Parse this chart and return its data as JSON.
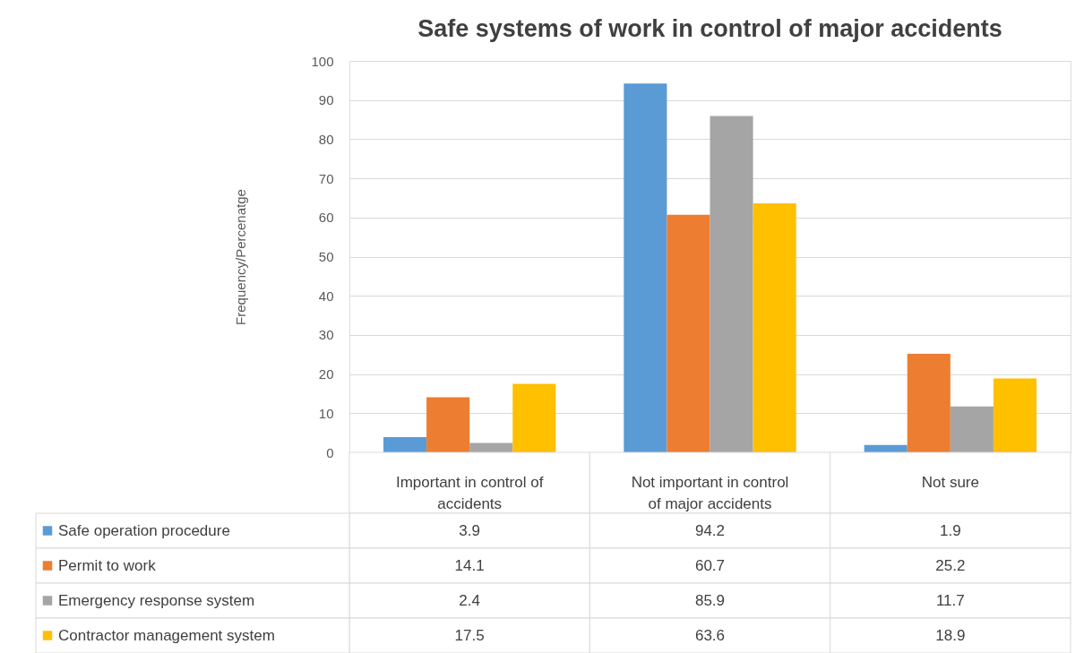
{
  "chart_data": {
    "type": "bar",
    "title": "Safe systems of work in control of major accidents",
    "ylabel": "Frequency/Percenatge",
    "categories": [
      "Important in control of accidents",
      "Not important in control of major accidents",
      "Not sure"
    ],
    "series": [
      {
        "name": "Safe operation procedure",
        "color": "#5b9bd5",
        "values": [
          3.9,
          94.2,
          1.9
        ]
      },
      {
        "name": "Permit to work",
        "color": "#ed7d31",
        "values": [
          14.1,
          60.7,
          25.2
        ]
      },
      {
        "name": "Emergency response system",
        "color": "#a5a5a5",
        "values": [
          2.4,
          85.9,
          11.7
        ]
      },
      {
        "name": "Contractor management system",
        "color": "#ffc000",
        "values": [
          17.5,
          63.6,
          18.9
        ]
      }
    ],
    "ylim": [
      0,
      100
    ],
    "yticks": [
      0,
      10,
      20,
      30,
      40,
      50,
      60,
      70,
      80,
      90,
      100
    ],
    "grid": "y",
    "data_labels": true,
    "legend": "bottom"
  }
}
